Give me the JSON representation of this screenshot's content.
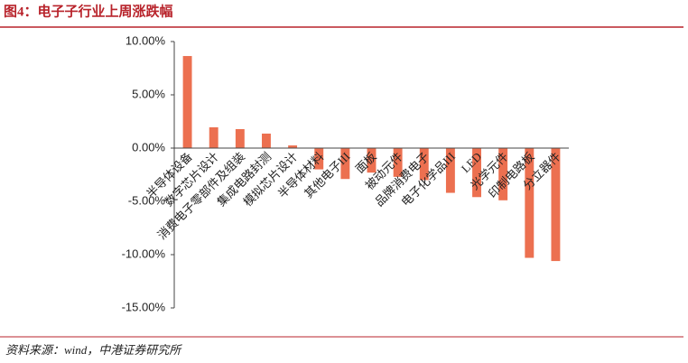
{
  "header": {
    "title": "图4：电子子行业上周涨跌幅"
  },
  "chart_data": {
    "type": "bar",
    "categories": [
      "半导体设备",
      "数字芯片设计",
      "消费电子零部件及组装",
      "集成电路封测",
      "模拟芯片设计",
      "半导体材料",
      "其他电子III",
      "面板",
      "被动元件",
      "品牌消费电子",
      "电子化学品III",
      "LED",
      "光学元件",
      "印制电路板",
      "分立器件"
    ],
    "values": [
      8.64,
      1.95,
      1.78,
      1.36,
      0.25,
      -2.0,
      -2.9,
      -2.3,
      -2.7,
      -3.0,
      -4.2,
      -4.6,
      -4.9,
      -10.3,
      -10.6
    ],
    "color": "#ec7050",
    "ylim": [
      -15,
      10
    ],
    "yticks": [
      {
        "value": -15,
        "label": "-15.00%"
      },
      {
        "value": -10,
        "label": "-10.00%"
      },
      {
        "value": -5,
        "label": "-5.00%"
      },
      {
        "value": 0,
        "label": "0.00%"
      },
      {
        "value": 5,
        "label": "5.00%"
      },
      {
        "value": 10,
        "label": "10.00%"
      }
    ]
  },
  "footer": {
    "source": "资料来源：wind，中港证券研究所"
  }
}
